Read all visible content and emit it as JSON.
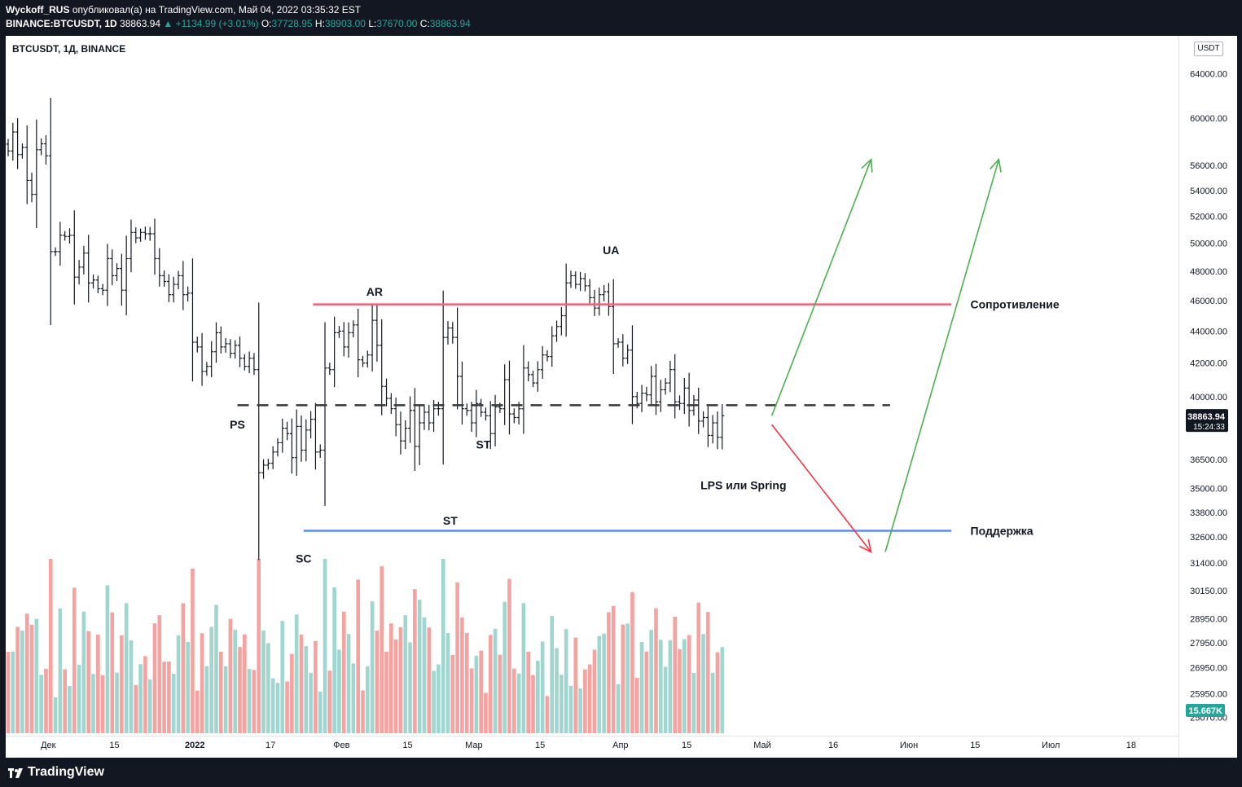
{
  "header": {
    "author": "Wyckoff_RUS",
    "published_text": "опубликовал(а) на TradingView.com, Май 04, 2022 03:35:32 EST",
    "symbol_full": "BINANCE:BTCUSDT, 1D",
    "last": "38863.94",
    "change": "▲ +1134.99 (+3.01%)",
    "o_label": "O:",
    "o_value": "37728.95",
    "h_label": "H:",
    "h_value": "38903.00",
    "l_label": "L:",
    "l_value": "37670.00",
    "c_label": "C:",
    "c_value": "38863.94"
  },
  "chart_title": "BTCUSDT, 1Д, BINANCE",
  "currency_unit": "USDT",
  "price_tag": {
    "value": "38863.94",
    "countdown": "15:24:33"
  },
  "volume_tag": "15.667K",
  "brand": "TradingView",
  "colors": {
    "up": "#26a69a",
    "down": "#ef5350",
    "resistance": "#f06277",
    "support": "#5b8def",
    "arrow_up": "#4caf50",
    "arrow_down": "#f23645",
    "level": "#3a3a3a"
  },
  "chart_data": {
    "type": "ohlc",
    "y_scale": "log",
    "y_range": [
      24500,
      67000
    ],
    "y_ticks": [
      64000,
      60000,
      56000,
      54000,
      52000,
      50000,
      48000,
      46000,
      44000,
      42000,
      40000,
      36500,
      35000,
      33800,
      32600,
      31400,
      30150,
      28950,
      27950,
      26950,
      25950,
      25070
    ],
    "y_tick_labels": [
      "64000.00",
      "60000.00",
      "56000.00",
      "54000.00",
      "52000.00",
      "50000.00",
      "48000.00",
      "46000.00",
      "44000.00",
      "42000.00",
      "40000.00",
      "36500.00",
      "35000.00",
      "33800.00",
      "32600.00",
      "31400.00",
      "30150.00",
      "28950.00",
      "27950.00",
      "26950.00",
      "25950.00",
      "25070.00"
    ],
    "x_range": [
      "2021-11-22",
      "2022-07-28"
    ],
    "x_ticks": [
      {
        "date": "2021-12-01",
        "label": "Дек"
      },
      {
        "date": "2021-12-15",
        "label": "15"
      },
      {
        "date": "2022-01-01",
        "label": "2022"
      },
      {
        "date": "2022-01-17",
        "label": "17"
      },
      {
        "date": "2022-02-01",
        "label": "Фев"
      },
      {
        "date": "2022-02-15",
        "label": "15"
      },
      {
        "date": "2022-03-01",
        "label": "Мар"
      },
      {
        "date": "2022-03-15",
        "label": "15"
      },
      {
        "date": "2022-04-01",
        "label": "Апр"
      },
      {
        "date": "2022-04-15",
        "label": "15"
      },
      {
        "date": "2022-05-01",
        "label": "Май"
      },
      {
        "date": "2022-05-16",
        "label": "16"
      },
      {
        "date": "2022-06-01",
        "label": "Июн"
      },
      {
        "date": "2022-06-15",
        "label": "15"
      },
      {
        "date": "2022-07-01",
        "label": "Июл"
      },
      {
        "date": "2022-07-18",
        "label": "18"
      }
    ],
    "start_date": "2021-11-22",
    "closes": [
      57200,
      58800,
      56900,
      57500,
      54800,
      53700,
      57300,
      57800,
      56800,
      49400,
      49400,
      50600,
      50500,
      50600,
      47600,
      48300,
      49300,
      47200,
      47400,
      46800,
      46700,
      48900,
      47700,
      48200,
      46700,
      48900,
      50800,
      50400,
      50800,
      50700,
      50700,
      48900,
      47700,
      47300,
      46400,
      47100,
      47700,
      46400,
      46500,
      43300,
      43000,
      41500,
      41800,
      42700,
      43900,
      43000,
      43200,
      42600,
      43100,
      42300,
      41800,
      42300,
      41600,
      35800,
      36200,
      36300,
      36900,
      37400,
      38200,
      37900,
      36600,
      38300,
      37000,
      38100,
      38700,
      36900,
      37000,
      41700,
      41600,
      43900,
      44000,
      43000,
      43900,
      44400,
      42200,
      42000,
      42500,
      44700,
      43100,
      40600,
      39900,
      39300,
      38400,
      37500,
      38200,
      39200,
      37200,
      38500,
      39100,
      38500,
      39300,
      39300,
      43600,
      44200,
      43600,
      41200,
      39300,
      39200,
      38500,
      39600,
      39100,
      38900,
      37900,
      39400,
      39300,
      41000,
      39000,
      38800,
      39300,
      41700,
      41300,
      40800,
      41600,
      42500,
      42400,
      43700,
      44300,
      45000,
      47200,
      47700,
      47100,
      47500,
      47000,
      46200,
      45500,
      46400,
      46600,
      45600,
      43200,
      43300,
      42300,
      42800,
      40000,
      39600,
      40200,
      40100,
      41200,
      39700,
      40400,
      40800,
      41600,
      39700,
      39600,
      40500,
      39200,
      39800,
      38600,
      38800,
      37800,
      38500,
      37700,
      38900
    ],
    "series_cross_check": [
      {
        "name": "AR",
        "date": "2022-02-10",
        "price": 45800
      },
      {
        "name": "UA",
        "date": "2022-03-28",
        "price": 48200
      }
    ]
  },
  "annotations": {
    "resistance_label": "Сопротивление",
    "support_label": "Поддержка",
    "points": [
      {
        "text": "PS",
        "date": "2022-01-10",
        "price": 38400
      },
      {
        "text": "AR",
        "date": "2022-02-08",
        "price": 46600
      },
      {
        "text": "SC",
        "date": "2022-01-24",
        "price": 31600
      },
      {
        "text": "ST",
        "date": "2022-03-03",
        "price": 37300
      },
      {
        "text": "ST",
        "date": "2022-02-24",
        "price": 33400
      },
      {
        "text": "UA",
        "date": "2022-03-30",
        "price": 49500
      },
      {
        "text": "LPS или Spring",
        "date": "2022-04-27",
        "price": 35150
      }
    ]
  }
}
